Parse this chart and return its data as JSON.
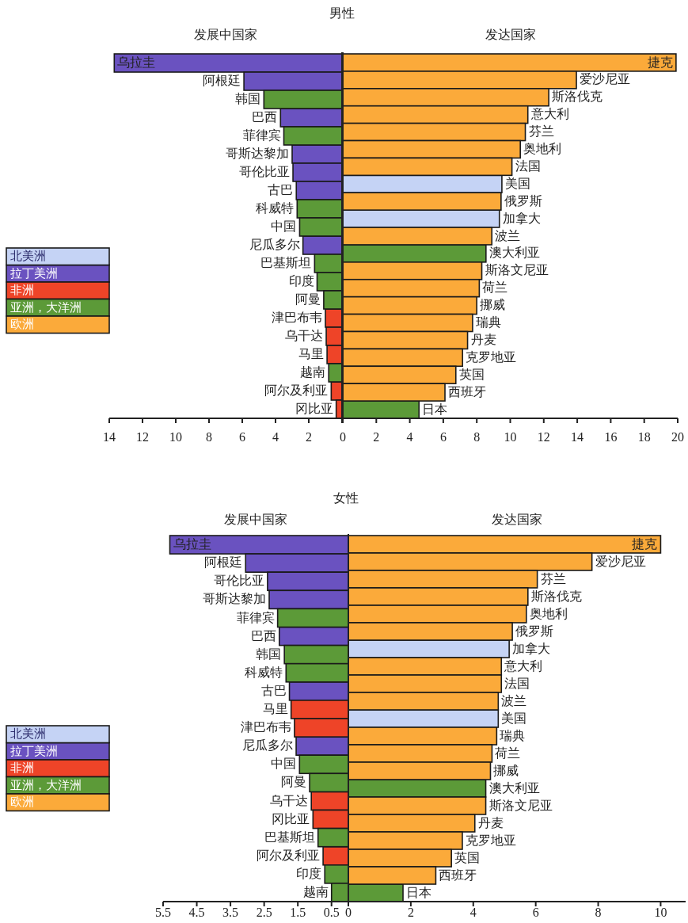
{
  "chart_data": [
    {
      "type": "bar",
      "orientation": "horizontal",
      "stacked": true,
      "title": "男性",
      "subtitle": "发展中国家",
      "legend": "left",
      "xlim": [
        14,
        0
      ],
      "xticks": [
        14,
        12,
        10,
        8,
        6,
        4,
        2,
        {
          "value": 0,
          "label": null
        }
      ],
      "categories": [
        "乌拉圭",
        "阿根廷",
        "韩国",
        "巴西",
        "菲律宾",
        "哥斯达黎加",
        "哥伦比亚",
        "古巴",
        "科威特",
        "中国",
        "尼瓜多尔",
        "巴基斯坦",
        "印度",
        "阿曼",
        "津巴布韦",
        "乌干达",
        "马里",
        "越南",
        "阿尔及利亚",
        "冈比亚"
      ],
      "series": [
        {
          "name": "拉丁美洲",
          "color": "#6a52c0",
          "values": [
            13.7,
            5.9,
            null,
            3.7,
            null,
            3.0,
            2.95,
            2.75,
            null,
            null,
            2.35,
            null,
            null,
            null,
            null,
            null,
            null,
            null,
            null,
            null
          ]
        },
        {
          "name": "非洲",
          "color": "#ee4428",
          "values": [
            null,
            null,
            null,
            null,
            null,
            null,
            null,
            null,
            null,
            null,
            null,
            null,
            null,
            null,
            1.0,
            0.95,
            0.9,
            null,
            0.65,
            0.35
          ]
        },
        {
          "name": "亚洲，大洋洲",
          "color": "#5c9a38",
          "values": [
            null,
            null,
            4.7,
            null,
            3.5,
            null,
            null,
            null,
            2.7,
            2.55,
            null,
            1.65,
            1.5,
            1.1,
            null,
            null,
            null,
            0.8,
            null,
            null
          ]
        }
      ]
    },
    {
      "type": "bar",
      "orientation": "horizontal",
      "stacked": true,
      "subtitle": "发达国家",
      "legend": "left",
      "xlim": [
        0,
        20
      ],
      "xticks": [
        0,
        2,
        4,
        6,
        8,
        10,
        12,
        14,
        16,
        18,
        20
      ],
      "categories": [
        "捷克",
        "爱沙尼亚",
        "斯洛伐克",
        "意大利",
        "芬兰",
        "奥地利",
        "法国",
        "美国",
        "俄罗斯",
        "加拿大",
        "波兰",
        "澳大利亚",
        "斯洛文尼亚",
        "荷兰",
        "挪威",
        "瑞典",
        "丹麦",
        "克罗地亚",
        "英国",
        "西班牙",
        "日本"
      ],
      "series": [
        {
          "name": "北美洲",
          "color": "#c5d3f5",
          "values": [
            null,
            null,
            null,
            null,
            null,
            null,
            null,
            9.5,
            null,
            9.35,
            null,
            null,
            null,
            null,
            null,
            null,
            null,
            null,
            null,
            null,
            null
          ]
        },
        {
          "color": "#5c9a38",
          "values": [
            null,
            null,
            null,
            null,
            null,
            null,
            null,
            null,
            null,
            null,
            null,
            8.55,
            null,
            null,
            null,
            null,
            null,
            null,
            null,
            null,
            4.55
          ]
        },
        {
          "name": "欧洲",
          "color": "#fbaa3a",
          "values": [
            19.9,
            13.95,
            12.3,
            11.05,
            10.9,
            10.6,
            10.1,
            null,
            9.45,
            null,
            8.9,
            null,
            8.3,
            8.15,
            8.0,
            7.75,
            7.45,
            7.15,
            6.75,
            6.1,
            null
          ]
        }
      ]
    },
    {
      "type": "bar",
      "orientation": "horizontal",
      "stacked": true,
      "title": "女性",
      "subtitle": "发展中国家",
      "legend": "left",
      "xlim": [
        5.5,
        0
      ],
      "xticks": [
        5.5,
        4.5,
        3.5,
        2.5,
        1.5,
        0.5,
        {
          "value": 0,
          "label": null
        }
      ],
      "categories": [
        "乌拉圭",
        "阿根廷",
        "哥伦比亚",
        "哥斯达黎加",
        "菲律宾",
        "巴西",
        "韩国",
        "科威特",
        "古巴",
        "马里",
        "津巴布韦",
        "尼瓜多尔",
        "中国",
        "阿曼",
        "乌干达",
        "冈比亚",
        "巴基斯坦",
        "阿尔及利亚",
        "印度",
        "越南"
      ],
      "series": [
        {
          "name": "拉丁美洲",
          "color": "#6a52c0",
          "values": [
            5.3,
            3.05,
            2.4,
            2.35,
            null,
            2.05,
            null,
            null,
            1.75,
            null,
            null,
            1.55,
            null,
            null,
            null,
            null,
            null,
            null,
            null,
            null
          ]
        },
        {
          "name": "非洲",
          "color": "#ee4428",
          "values": [
            null,
            null,
            null,
            null,
            null,
            null,
            null,
            null,
            null,
            1.7,
            1.6,
            null,
            null,
            null,
            1.1,
            1.05,
            null,
            0.75,
            null,
            null
          ]
        },
        {
          "name": "亚洲，大洋洲",
          "color": "#5c9a38",
          "values": [
            null,
            null,
            null,
            null,
            2.1,
            null,
            1.9,
            1.85,
            null,
            null,
            null,
            null,
            1.45,
            1.15,
            null,
            null,
            0.9,
            null,
            0.7,
            0.5
          ]
        }
      ]
    },
    {
      "type": "bar",
      "orientation": "horizontal",
      "stacked": true,
      "subtitle": "发达国家",
      "legend": "left",
      "xlim": [
        0,
        10.8
      ],
      "xticks": [
        0,
        2,
        4,
        6,
        8,
        10
      ],
      "categories": [
        "捷克",
        "爱沙尼亚",
        "芬兰",
        "斯洛伐克",
        "奥地利",
        "俄罗斯",
        "加拿大",
        "意大利",
        "法国",
        "波兰",
        "美国",
        "瑞典",
        "荷兰",
        "挪威",
        "澳大利亚",
        "斯洛文尼亚",
        "丹麦",
        "克罗地亚",
        "英国",
        "西班牙",
        "日本"
      ],
      "series": [
        {
          "name": "北美洲",
          "color": "#c5d3f5",
          "values": [
            null,
            null,
            null,
            null,
            null,
            null,
            5.15,
            null,
            null,
            null,
            4.8,
            null,
            null,
            null,
            null,
            null,
            null,
            null,
            null,
            null,
            null
          ]
        },
        {
          "color": "#5c9a38",
          "values": [
            null,
            null,
            null,
            null,
            null,
            null,
            null,
            null,
            null,
            null,
            null,
            null,
            null,
            null,
            4.4,
            null,
            null,
            null,
            null,
            null,
            1.75
          ]
        },
        {
          "name": "欧洲",
          "color": "#fbaa3a",
          "values": [
            10.0,
            7.8,
            6.05,
            5.75,
            5.7,
            5.25,
            null,
            4.9,
            4.9,
            4.8,
            null,
            4.75,
            4.6,
            4.55,
            null,
            4.4,
            4.05,
            3.65,
            3.3,
            2.8,
            null
          ]
        }
      ]
    }
  ]
}
